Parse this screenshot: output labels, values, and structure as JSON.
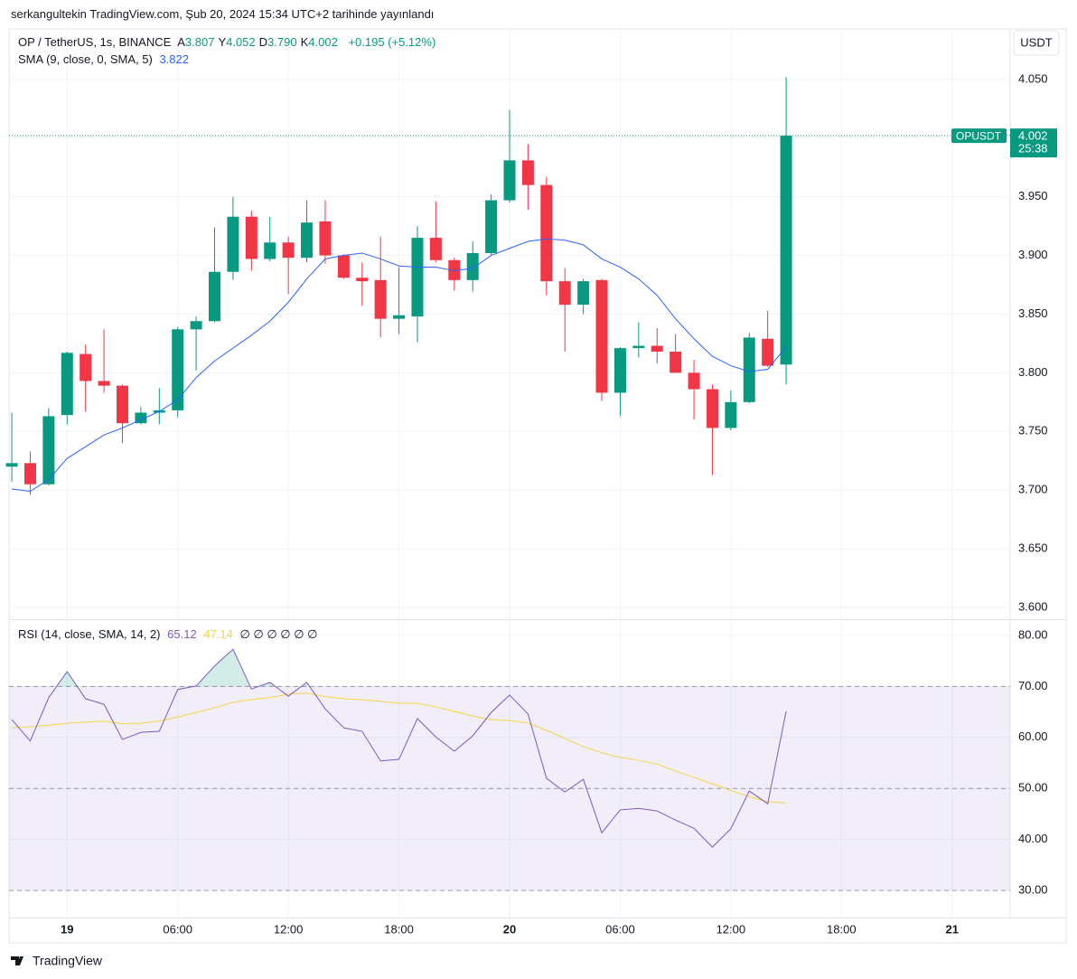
{
  "header": {
    "publisher": "serkangultekin TradingView.com, Şub 20, 2024 15:34 UTC+2 tarihinde yayınlandı",
    "brand": "TradingView",
    "currency_button": "USDT"
  },
  "chart_data": [
    {
      "type": "candlestick",
      "title": "OP / TetherUS, 1s, BINANCE",
      "ohlc_legend": [
        {
          "label": "A",
          "value": "3.807"
        },
        {
          "label": "Y",
          "value": "4.052"
        },
        {
          "label": "D",
          "value": "3.790"
        },
        {
          "label": "K",
          "value": "4.002"
        }
      ],
      "change": "+0.195 (+5.12%)",
      "symbol_tag": "OPUSDT",
      "countdown": "25:38",
      "up_color": "#089981",
      "down_color": "#f23645",
      "open": [
        3.72,
        3.723,
        3.705,
        3.764,
        3.816,
        3.793,
        3.789,
        3.757,
        3.766,
        3.768,
        3.837,
        3.844,
        3.886,
        3.933,
        3.897,
        3.911,
        3.898,
        3.929,
        3.9,
        3.881,
        3.879,
        3.846,
        3.848,
        3.915,
        3.896,
        3.879,
        3.902,
        3.947,
        3.981,
        3.96,
        3.878,
        3.858,
        3.879,
        3.783,
        3.821,
        3.823,
        3.818,
        3.8,
        3.786,
        3.753,
        3.775,
        3.829,
        3.807
      ],
      "high": [
        3.766,
        3.733,
        3.77,
        3.818,
        3.824,
        3.837,
        3.79,
        3.771,
        3.787,
        3.839,
        3.848,
        3.924,
        3.95,
        3.938,
        3.933,
        3.916,
        3.947,
        3.947,
        3.901,
        3.894,
        3.916,
        3.89,
        3.925,
        3.946,
        3.898,
        3.912,
        3.952,
        4.024,
        3.995,
        3.967,
        3.889,
        3.88,
        3.88,
        3.822,
        3.843,
        3.838,
        3.833,
        3.811,
        3.79,
        3.785,
        3.834,
        3.853,
        4.052
      ],
      "low": [
        3.707,
        3.696,
        3.704,
        3.756,
        3.767,
        3.783,
        3.74,
        3.756,
        3.756,
        3.762,
        3.802,
        3.843,
        3.879,
        3.887,
        3.895,
        3.867,
        3.894,
        3.893,
        3.88,
        3.857,
        3.83,
        3.833,
        3.826,
        3.894,
        3.87,
        3.869,
        3.9,
        3.945,
        3.939,
        3.866,
        3.818,
        3.85,
        3.776,
        3.763,
        3.813,
        3.808,
        3.8,
        3.76,
        3.713,
        3.751,
        3.774,
        3.805,
        3.79
      ],
      "close": [
        3.723,
        3.705,
        3.763,
        3.817,
        3.793,
        3.789,
        3.757,
        3.766,
        3.768,
        3.837,
        3.844,
        3.886,
        3.933,
        3.897,
        3.911,
        3.898,
        3.928,
        3.9,
        3.881,
        3.878,
        3.846,
        3.849,
        3.915,
        3.896,
        3.879,
        3.902,
        3.947,
        3.981,
        3.96,
        3.878,
        3.858,
        3.878,
        3.783,
        3.821,
        3.823,
        3.818,
        3.8,
        3.786,
        3.753,
        3.775,
        3.83,
        3.806,
        4.002
      ],
      "overlays": [
        {
          "name": "SMA (9, close, 0, SMA, 5)",
          "color": "#2962ff",
          "values": [
            3.701,
            3.699,
            3.709,
            3.727,
            3.737,
            3.747,
            3.753,
            3.76,
            3.767,
            3.777,
            3.796,
            3.81,
            3.821,
            3.832,
            3.844,
            3.86,
            3.88,
            3.897,
            3.9,
            3.902,
            3.897,
            3.891,
            3.89,
            3.89,
            3.887,
            3.889,
            3.9,
            3.906,
            3.912,
            3.914,
            3.913,
            3.909,
            3.897,
            3.89,
            3.88,
            3.866,
            3.846,
            3.829,
            3.814,
            3.806,
            3.801,
            3.803,
            3.822
          ]
        }
      ],
      "xlim": [
        -0.15,
        54.15
      ],
      "xticks": [
        {
          "value": 3,
          "label": "19"
        },
        {
          "value": 9,
          "label": "06:00"
        },
        {
          "value": 15,
          "label": "12:00"
        },
        {
          "value": 21,
          "label": "18:00"
        },
        {
          "value": 27,
          "label": "20"
        },
        {
          "value": 33,
          "label": "06:00"
        },
        {
          "value": 39,
          "label": "12:00"
        },
        {
          "value": 45,
          "label": "18:00"
        },
        {
          "value": 51,
          "label": "21"
        }
      ],
      "ylim": [
        3.59,
        4.093
      ],
      "yticks": [
        {
          "value": 3.6,
          "label": "3.600"
        },
        {
          "value": 3.65,
          "label": "3.650"
        },
        {
          "value": 3.7,
          "label": "3.700"
        },
        {
          "value": 3.75,
          "label": "3.750"
        },
        {
          "value": 3.8,
          "label": "3.800"
        },
        {
          "value": 3.85,
          "label": "3.850"
        },
        {
          "value": 3.9,
          "label": "3.900"
        },
        {
          "value": 3.95,
          "label": "3.950"
        },
        {
          "value": 4.0,
          "label": "4.000"
        },
        {
          "value": 4.05,
          "label": "4.050"
        }
      ],
      "grid": true
    },
    {
      "type": "line",
      "title": "RSI (14, close, SMA, 14, 2)",
      "na_values": "∅ ∅ ∅ ∅ ∅ ∅",
      "series": [
        {
          "color": "#7e57c2",
          "values": [
            63.5,
            59.3,
            67.8,
            72.9,
            67.6,
            66.5,
            59.6,
            61.0,
            61.2,
            69.4,
            70.1,
            74.0,
            77.3,
            69.5,
            70.8,
            68.1,
            70.8,
            65.6,
            61.9,
            61.2,
            55.4,
            55.7,
            63.7,
            60.1,
            57.3,
            60.3,
            64.9,
            68.3,
            64.6,
            52.0,
            49.3,
            51.8,
            41.3,
            45.8,
            46.1,
            45.6,
            43.8,
            42.2,
            38.5,
            42.1,
            49.5,
            47.0,
            65.12
          ]
        },
        {
          "color": "#f5d34a",
          "values": [
            61.9,
            62.1,
            62.4,
            62.8,
            63.0,
            63.2,
            62.7,
            62.8,
            63.2,
            64.0,
            64.9,
            65.8,
            66.9,
            67.4,
            67.8,
            68.5,
            68.7,
            68.0,
            67.6,
            67.4,
            67.1,
            66.7,
            66.7,
            66.0,
            65.1,
            64.2,
            63.5,
            63.3,
            62.8,
            61.4,
            59.8,
            58.2,
            57.0,
            56.1,
            55.5,
            54.8,
            53.4,
            52.2,
            50.9,
            49.6,
            48.4,
            47.4,
            47.14
          ]
        }
      ],
      "bands": [
        70,
        50,
        30
      ],
      "ylim": [
        24.7,
        83.0
      ],
      "yticks": [
        {
          "value": 30,
          "label": "30.00"
        },
        {
          "value": 40,
          "label": "40.00"
        },
        {
          "value": 50,
          "label": "50.00"
        },
        {
          "value": 60,
          "label": "60.00"
        },
        {
          "value": 70,
          "label": "70.00"
        },
        {
          "value": 80,
          "label": "80.00"
        }
      ],
      "grid": true
    }
  ]
}
